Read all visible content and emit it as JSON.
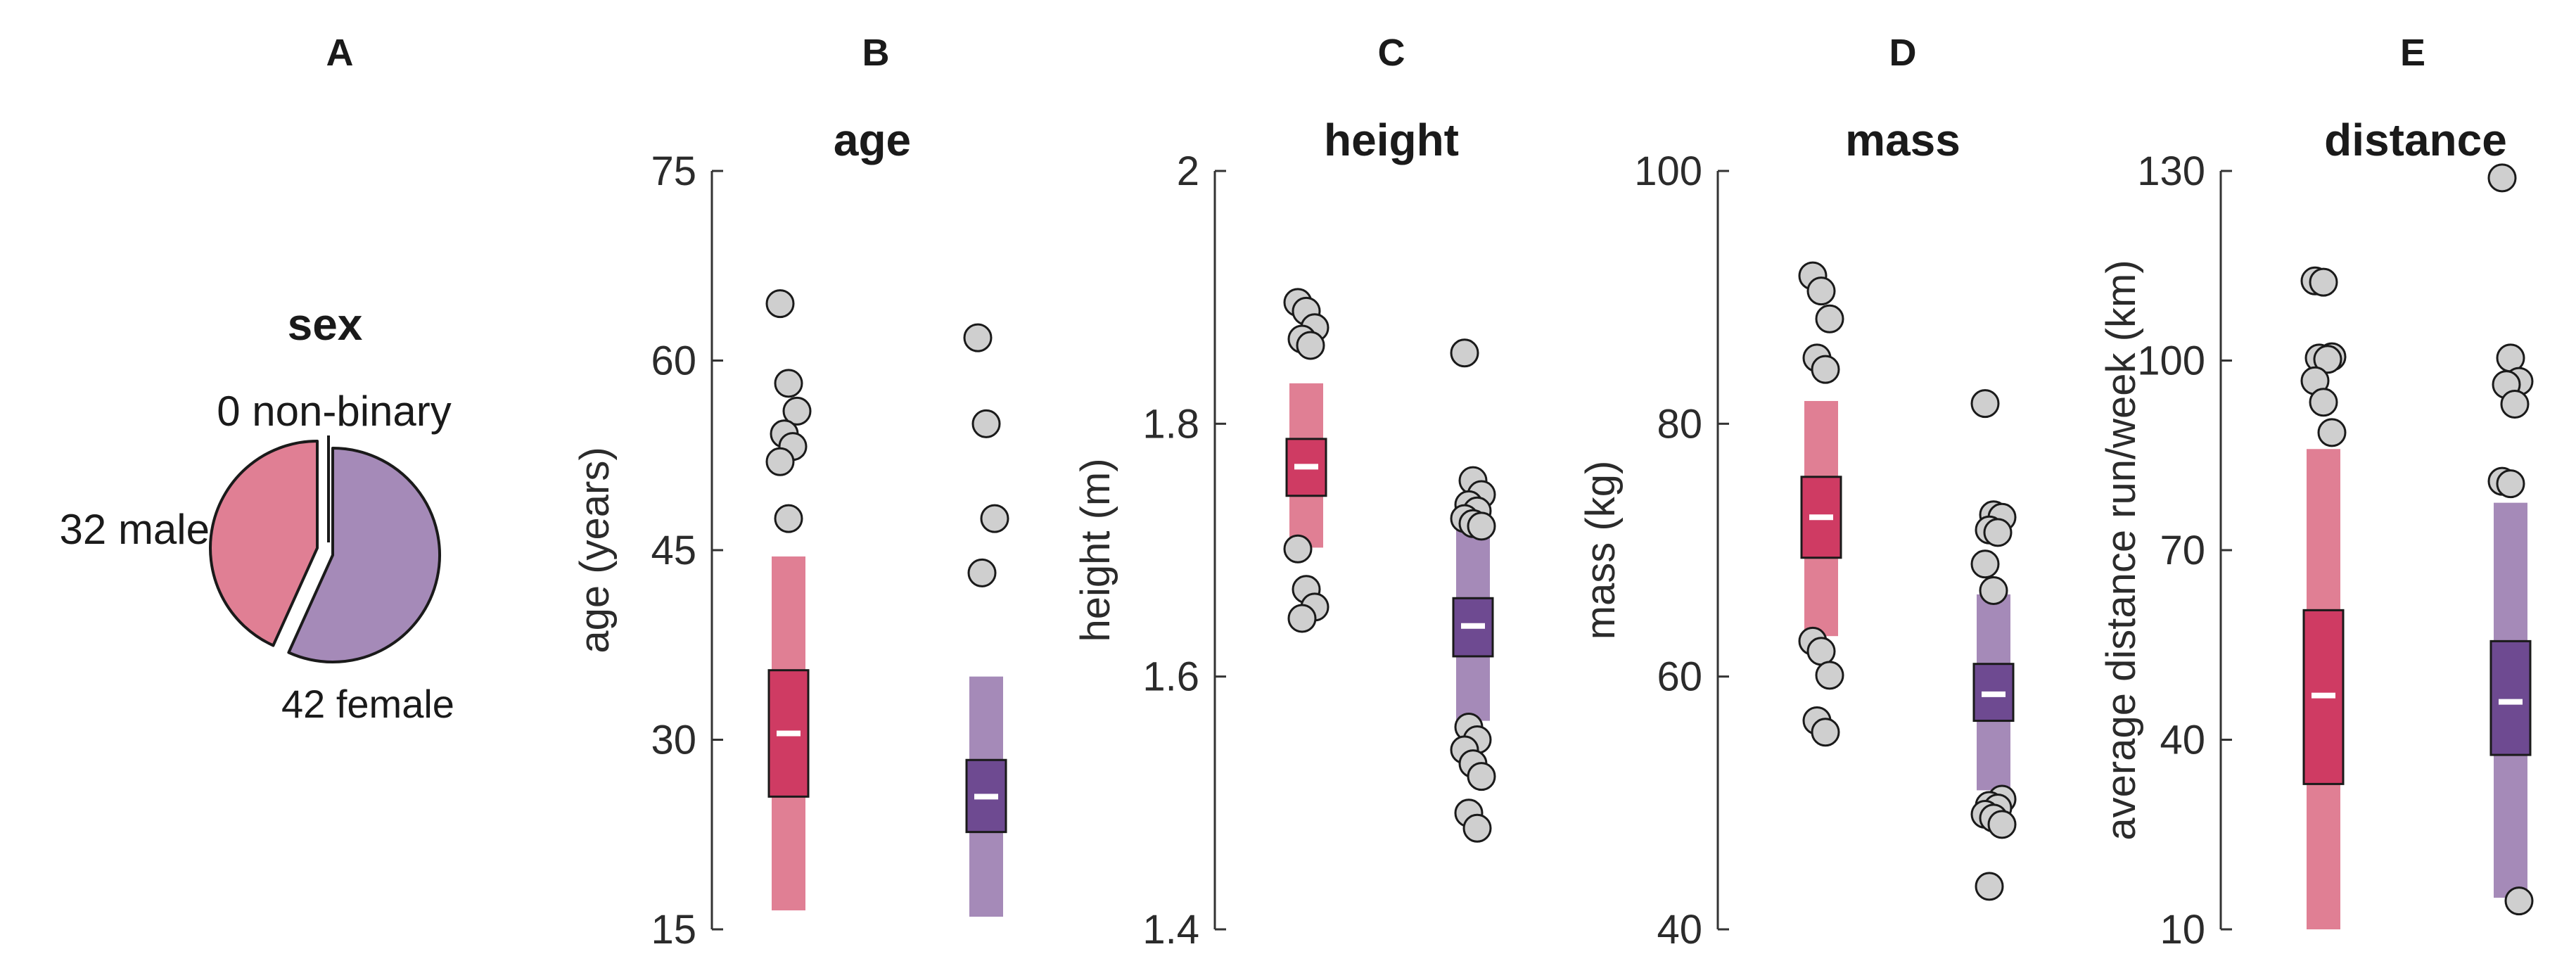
{
  "figure": {
    "panel_letters": [
      "A",
      "B",
      "C",
      "D",
      "E"
    ]
  },
  "colors": {
    "male_light": "#e07f94",
    "male_dark": "#cf3b63",
    "female_light": "#a58ab8",
    "female_dark": "#6e4a91",
    "point_fill": "#cfcfcf",
    "outline": "#1a1a1a",
    "median": "#ffffff"
  },
  "chart_data": [
    {
      "type": "pie",
      "title": "sex",
      "slices": [
        {
          "label": "0 non-binary",
          "category": "non-binary",
          "value": 0
        },
        {
          "label": "32 male",
          "category": "male",
          "value": 32
        },
        {
          "label": "42 female",
          "category": "female",
          "value": 42
        }
      ]
    },
    {
      "type": "box",
      "title": "age",
      "ylabel": "age (years)",
      "ylim": [
        15,
        75
      ],
      "yticks": [
        15,
        30,
        45,
        60,
        75
      ],
      "groups": [
        {
          "name": "male",
          "whisker": [
            16.5,
            44.5
          ],
          "box": [
            25.5,
            35.5
          ],
          "median": 30.5,
          "outliers": [
            64.5,
            58.2,
            56,
            54.2,
            53.2,
            52,
            47.5
          ]
        },
        {
          "name": "female",
          "whisker": [
            16,
            35
          ],
          "box": [
            22.7,
            28.4
          ],
          "median": 25.5,
          "outliers": [
            61.8,
            55,
            47.5,
            43.2
          ]
        }
      ]
    },
    {
      "type": "box",
      "title": "height",
      "ylabel": "height (m)",
      "ylim": [
        1.4,
        2
      ],
      "yticks": [
        1.4,
        1.6,
        1.8,
        2
      ],
      "groups": [
        {
          "name": "male",
          "whisker": [
            1.702,
            1.832
          ],
          "box": [
            1.743,
            1.788
          ],
          "median": 1.766,
          "outliers": [
            1.896,
            1.889,
            1.876,
            1.867,
            1.862,
            1.701,
            1.669,
            1.655,
            1.646
          ]
        },
        {
          "name": "female",
          "whisker": [
            1.565,
            1.74
          ],
          "box": [
            1.616,
            1.662
          ],
          "median": 1.64,
          "outliers": [
            1.856,
            1.755,
            1.744,
            1.736,
            1.731,
            1.725,
            1.721,
            1.719,
            1.56,
            1.55,
            1.542,
            1.531,
            1.521,
            1.492,
            1.48
          ]
        }
      ]
    },
    {
      "type": "box",
      "title": "mass",
      "ylabel": "mass (kg)",
      "ylim": [
        40,
        100
      ],
      "yticks": [
        40,
        60,
        80,
        100
      ],
      "groups": [
        {
          "name": "male",
          "whisker": [
            63.2,
            81.8
          ],
          "box": [
            69.4,
            75.8
          ],
          "median": 72.6,
          "outliers": [
            91.7,
            90.5,
            88.3,
            85.2,
            84.3,
            62.8,
            62,
            60.1,
            56.5,
            55.6
          ]
        },
        {
          "name": "female",
          "whisker": [
            51,
            66.5
          ],
          "box": [
            56.5,
            61
          ],
          "median": 58.6,
          "outliers": [
            81.6,
            72.8,
            72.6,
            71.6,
            71.4,
            68.9,
            66.8,
            50.3,
            49.8,
            49.6,
            49.1,
            48.8,
            48.3,
            43.4
          ]
        }
      ]
    },
    {
      "type": "box",
      "title": "distance",
      "ylabel": "average distance run/week (km)",
      "ylim": [
        10,
        130
      ],
      "yticks": [
        10,
        40,
        70,
        100,
        130
      ],
      "groups": [
        {
          "name": "male",
          "whisker": [
            10,
            86
          ],
          "box": [
            33,
            60.5
          ],
          "median": 47,
          "outliers": [
            112.6,
            112.4,
            100.6,
            100.4,
            100.2,
            96.8,
            93.4,
            88.6
          ]
        },
        {
          "name": "female",
          "whisker": [
            15,
            77.5
          ],
          "box": [
            37.6,
            55.6
          ],
          "median": 46,
          "outliers": [
            128.9,
            100.4,
            96.7,
            96.2,
            93.1,
            80.9,
            80.5,
            14.5
          ]
        }
      ]
    }
  ]
}
